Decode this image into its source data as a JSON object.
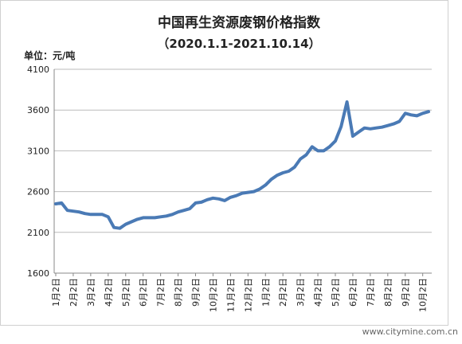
{
  "chart_data": {
    "type": "line",
    "title": "中国再生资源废钢价格指数",
    "subtitle": "（2020.1.1-2021.10.14）",
    "y_label": "单位：元/吨",
    "watermark": "www.citymine.com.cn",
    "categories": [
      "1月2日",
      null,
      null,
      "2月2日",
      null,
      null,
      "3月2日",
      null,
      null,
      "4月2日",
      null,
      null,
      "5月2日",
      null,
      null,
      "6月2日",
      null,
      null,
      "7月2日",
      null,
      null,
      "8月2日",
      null,
      null,
      "9月2日",
      null,
      null,
      "10月2日",
      null,
      null,
      "11月2日",
      null,
      null,
      "12月2日",
      null,
      null,
      "1月2日",
      null,
      null,
      "2月2日",
      null,
      null,
      "3月2日",
      null,
      null,
      "4月2日",
      null,
      null,
      "5月2日",
      null,
      null,
      "6月2日",
      null,
      null,
      "7月2日",
      null,
      null,
      "8月2日",
      null,
      null,
      "9月2日",
      null,
      null,
      "10月2日",
      null
    ],
    "series": [
      {
        "name": "废钢价格指数",
        "color": "#4a7ab5",
        "values": [
          2450,
          2460,
          2370,
          2360,
          2350,
          2330,
          2320,
          2320,
          2320,
          2290,
          2160,
          2150,
          2200,
          2230,
          2260,
          2280,
          2280,
          2280,
          2290,
          2300,
          2320,
          2350,
          2370,
          2390,
          2460,
          2470,
          2500,
          2520,
          2510,
          2490,
          2530,
          2550,
          2580,
          2590,
          2600,
          2630,
          2680,
          2750,
          2800,
          2830,
          2850,
          2900,
          3000,
          3050,
          3150,
          3100,
          3100,
          3150,
          3220,
          3400,
          3700,
          3280,
          3330,
          3380,
          3370,
          3380,
          3390,
          3410,
          3430,
          3460,
          3560,
          3540,
          3530,
          3560,
          3580
        ]
      }
    ],
    "ylim": [
      1600,
      4100
    ],
    "yticks": [
      1600,
      2100,
      2600,
      3100,
      3600,
      4100
    ],
    "grid": true
  }
}
